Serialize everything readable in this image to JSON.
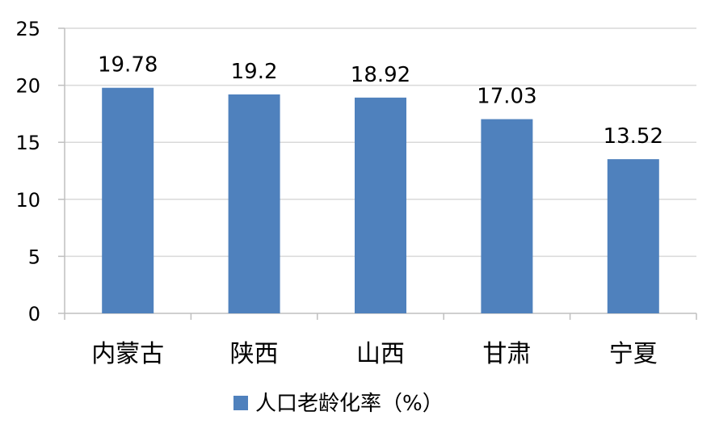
{
  "chart_data": {
    "type": "bar",
    "categories": [
      "内蒙古",
      "陕西",
      "山西",
      "甘肃",
      "宁夏"
    ],
    "series": [
      {
        "name": "人口老龄化率（%）",
        "values": [
          19.78,
          19.2,
          18.92,
          17.03,
          13.52
        ],
        "color": "#4F81BD"
      }
    ],
    "data_labels": [
      "19.78",
      "19.2",
      "18.92",
      "17.03",
      "13.52"
    ],
    "yticks": [
      "0",
      "5",
      "10",
      "15",
      "20",
      "25"
    ],
    "ylim": [
      0,
      25
    ],
    "grid": true,
    "legend_position": "bottom",
    "colors": {
      "bar": "#4F81BD",
      "grid": "#D9D9D9",
      "axis": "#BFBFBF"
    }
  }
}
